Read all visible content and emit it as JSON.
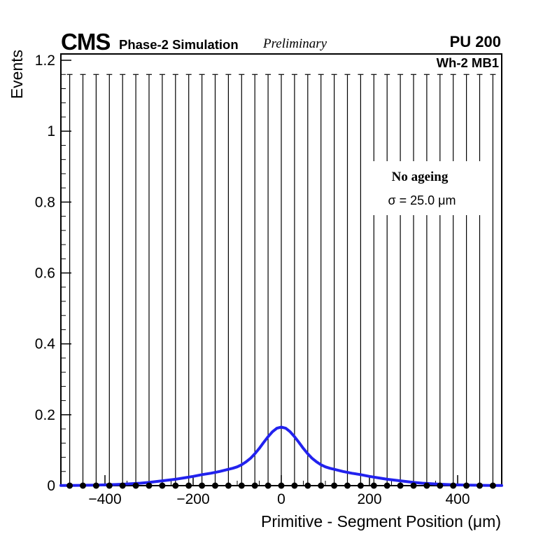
{
  "header": {
    "experiment": "CMS",
    "subtitle": "Phase-2 Simulation",
    "status": "Preliminary",
    "pileup": "PU 200",
    "chamber": "Wh-2 MB1"
  },
  "legend": {
    "line1": "No ageing",
    "line2": "σ = 25.0 μm"
  },
  "axes": {
    "x_title": "Primitive - Segment Position (μm)",
    "y_title": "Events"
  },
  "colors": {
    "curve": "#2222ee",
    "marker": "#000000",
    "axis": "#000000",
    "background": "#ffffff"
  },
  "chart_data": {
    "type": "line",
    "title": "",
    "xlabel": "Primitive - Segment Position (μm)",
    "ylabel": "Events",
    "xlim": [
      -500,
      500
    ],
    "ylim": [
      0,
      1.22
    ],
    "grid": false,
    "legend_position": "inside-top-right",
    "x_major_ticks": [
      -400,
      -200,
      0,
      200,
      400
    ],
    "x_tick_labels": [
      "−400",
      "−200",
      "0",
      "200",
      "400"
    ],
    "x_minor_step": 50,
    "y_major_ticks": [
      0,
      0.2,
      0.4,
      0.6,
      0.8,
      1,
      1.2
    ],
    "y_tick_labels": [
      "0",
      "0.2",
      "0.4",
      "0.6",
      "0.8",
      "1",
      "1.2"
    ],
    "y_minor_step": 0.04,
    "series": [
      {
        "name": "data points",
        "type": "scatter",
        "marker": "filled-circle",
        "color": "#000000",
        "x": [
          -480,
          -450,
          -420,
          -390,
          -360,
          -330,
          -300,
          -270,
          -240,
          -210,
          -180,
          -150,
          -120,
          -90,
          -60,
          -30,
          0,
          30,
          60,
          90,
          120,
          150,
          180,
          210,
          240,
          270,
          300,
          330,
          360,
          390,
          420,
          450,
          480
        ],
        "y_constant": 0,
        "error_low": 0,
        "error_high": 1.16
      },
      {
        "name": "fit curve (σ = 25.0 μm)",
        "type": "line",
        "color": "#2222ee",
        "peak": 0.165,
        "points": [
          [
            -500,
            0.0004
          ],
          [
            -480,
            0.0006
          ],
          [
            -460,
            0.0008
          ],
          [
            -440,
            0.0011
          ],
          [
            -420,
            0.0016
          ],
          [
            -400,
            0.0022
          ],
          [
            -380,
            0.003
          ],
          [
            -360,
            0.004
          ],
          [
            -340,
            0.0055
          ],
          [
            -320,
            0.007
          ],
          [
            -300,
            0.009
          ],
          [
            -280,
            0.012
          ],
          [
            -260,
            0.015
          ],
          [
            -240,
            0.018
          ],
          [
            -220,
            0.022
          ],
          [
            -200,
            0.026
          ],
          [
            -180,
            0.031
          ],
          [
            -160,
            0.035
          ],
          [
            -140,
            0.04
          ],
          [
            -120,
            0.046
          ],
          [
            -110,
            0.049
          ],
          [
            -100,
            0.053
          ],
          [
            -90,
            0.059
          ],
          [
            -80,
            0.067
          ],
          [
            -70,
            0.077
          ],
          [
            -60,
            0.09
          ],
          [
            -50,
            0.105
          ],
          [
            -40,
            0.122
          ],
          [
            -30,
            0.138
          ],
          [
            -20,
            0.152
          ],
          [
            -10,
            0.162
          ],
          [
            0,
            0.165
          ],
          [
            10,
            0.162
          ],
          [
            20,
            0.152
          ],
          [
            30,
            0.138
          ],
          [
            40,
            0.122
          ],
          [
            50,
            0.105
          ],
          [
            60,
            0.09
          ],
          [
            70,
            0.077
          ],
          [
            80,
            0.067
          ],
          [
            90,
            0.059
          ],
          [
            100,
            0.053
          ],
          [
            110,
            0.049
          ],
          [
            120,
            0.046
          ],
          [
            140,
            0.04
          ],
          [
            160,
            0.035
          ],
          [
            180,
            0.031
          ],
          [
            200,
            0.026
          ],
          [
            220,
            0.022
          ],
          [
            240,
            0.018
          ],
          [
            260,
            0.015
          ],
          [
            280,
            0.012
          ],
          [
            300,
            0.009
          ],
          [
            320,
            0.007
          ],
          [
            340,
            0.0055
          ],
          [
            360,
            0.004
          ],
          [
            380,
            0.003
          ],
          [
            400,
            0.0022
          ],
          [
            420,
            0.0016
          ],
          [
            440,
            0.0011
          ],
          [
            460,
            0.0008
          ],
          [
            480,
            0.0006
          ],
          [
            500,
            0.0004
          ]
        ]
      }
    ]
  }
}
